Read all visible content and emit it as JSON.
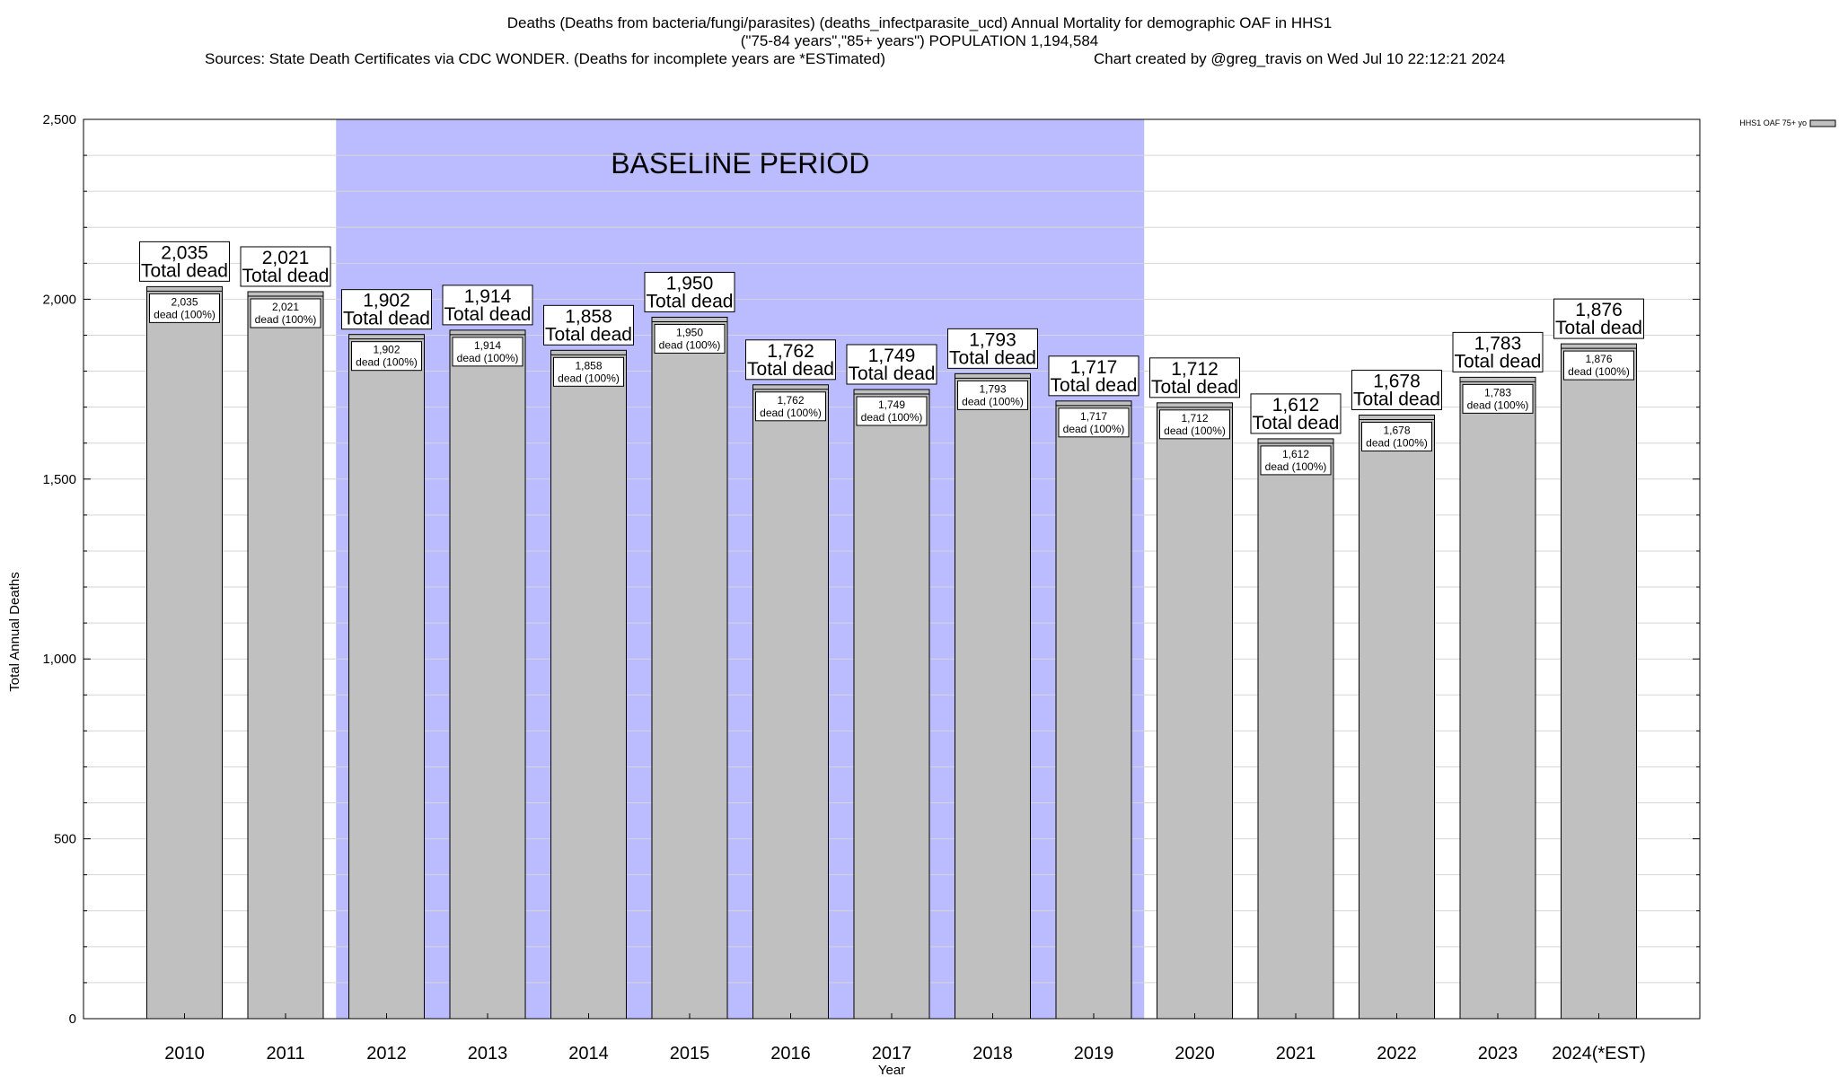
{
  "chart_data": {
    "type": "bar",
    "title_lines": [
      "Deaths (Deaths from bacteria/fungi/parasites) (deaths_infectparasite_ucd) Annual Mortality for demographic OAF in HHS1",
      "(\"75-84 years\",\"85+ years\") POPULATION 1,194,584"
    ],
    "sources_text": "Sources: State Death Certificates via CDC WONDER. (Deaths for incomplete years are *ESTimated)",
    "credit_text": "Chart created by @greg_travis on Wed Jul 10 22:12:21 2024",
    "xlabel": "Year",
    "ylabel": "Total Annual Deaths",
    "ylim": [
      0,
      2500
    ],
    "yticks": [
      {
        "value": 0,
        "label": "0"
      },
      {
        "value": 500,
        "label": "500"
      },
      {
        "value": 1000,
        "label": "1,000"
      },
      {
        "value": 1500,
        "label": "1,500"
      },
      {
        "value": 2000,
        "label": "2,000"
      },
      {
        "value": 2500,
        "label": "2,500"
      }
    ],
    "grid": true,
    "categories": [
      "2010",
      "2011",
      "2012",
      "2013",
      "2014",
      "2015",
      "2016",
      "2017",
      "2018",
      "2019",
      "2020",
      "2021",
      "2022",
      "2023",
      "2024(*EST)"
    ],
    "series": [
      {
        "name": "HHS1 OAF 75+ yo",
        "color": "#c0c0c0",
        "values": [
          2035,
          2021,
          1902,
          1914,
          1858,
          1950,
          1762,
          1749,
          1793,
          1717,
          1712,
          1612,
          1678,
          1783,
          1876
        ],
        "value_labels": [
          "2,035",
          "2,021",
          "1,902",
          "1,914",
          "1,858",
          "1,950",
          "1,762",
          "1,749",
          "1,793",
          "1,717",
          "1,712",
          "1,612",
          "1,678",
          "1,783",
          "1,876"
        ]
      }
    ],
    "total_label_suffix": "Total dead",
    "inner_label_suffix": "dead (100%)",
    "baseline": {
      "label": "BASELINE PERIOD",
      "start_category": "2012",
      "end_category": "2019",
      "color": "#bbbbff"
    },
    "legend": {
      "position": "top-right",
      "label": "HHS1 OAF 75+ yo"
    }
  }
}
